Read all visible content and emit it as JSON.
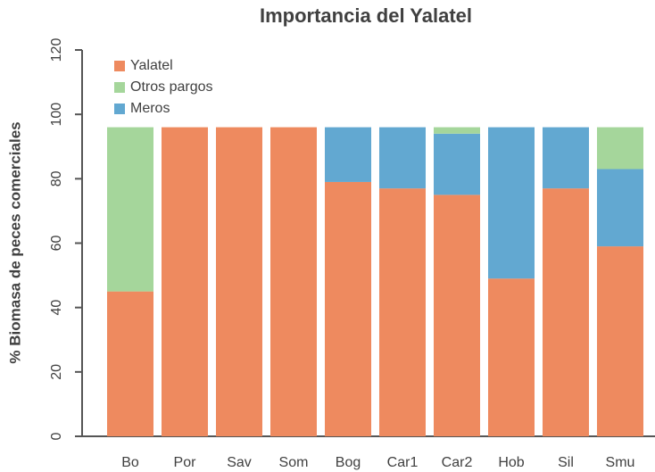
{
  "chart_data": {
    "type": "stacked_bar",
    "title": "Importancia del Yalatel",
    "ylabel": "% Biomasa de peces comerciales",
    "categories": [
      "Bo",
      "Por",
      "Sav",
      "Som",
      "Bog",
      "Car1",
      "Car2",
      "Hob",
      "Sil",
      "Smu"
    ],
    "series": [
      {
        "name": "Yalatel",
        "color": "#ee8a5f",
        "values": [
          45,
          96,
          96,
          96,
          79,
          77,
          75,
          49,
          77,
          59
        ]
      },
      {
        "name": "Meros",
        "color": "#62a8d1",
        "values": [
          0,
          0,
          0,
          0,
          17,
          19,
          19,
          47,
          19,
          24
        ]
      },
      {
        "name": "Otros pargos",
        "color": "#a5d69b",
        "values": [
          51,
          0,
          0,
          0,
          0,
          0,
          2,
          0,
          0,
          13
        ]
      }
    ],
    "legend_order": [
      0,
      2,
      1
    ],
    "ylim": [
      0,
      120
    ],
    "yticks": [
      0,
      20,
      40,
      60,
      80,
      100,
      120
    ],
    "legend": "upper left"
  }
}
